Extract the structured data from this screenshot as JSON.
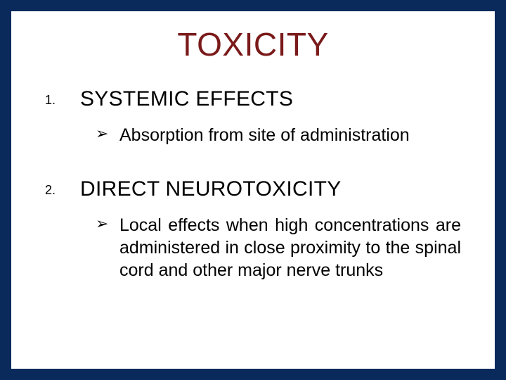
{
  "slide": {
    "title": "TOXICITY",
    "title_color": "#7a1a1a",
    "title_fontsize": 46,
    "background_outer": "#0a2a5c",
    "background_inner": "#ffffff",
    "items": [
      {
        "heading": "SYSTEMIC EFFECTS",
        "heading_fontsize": 30,
        "bullets": [
          "Absorption from site of administration"
        ]
      },
      {
        "heading": "DIRECT NEUROTOXICITY",
        "heading_fontsize": 30,
        "bullets": [
          "Local effects when high concentrations are administered in close proximity to the spinal cord and other major nerve trunks"
        ]
      }
    ],
    "bullet_glyph": "➢",
    "body_fontsize": 25,
    "body_color": "#000000"
  }
}
